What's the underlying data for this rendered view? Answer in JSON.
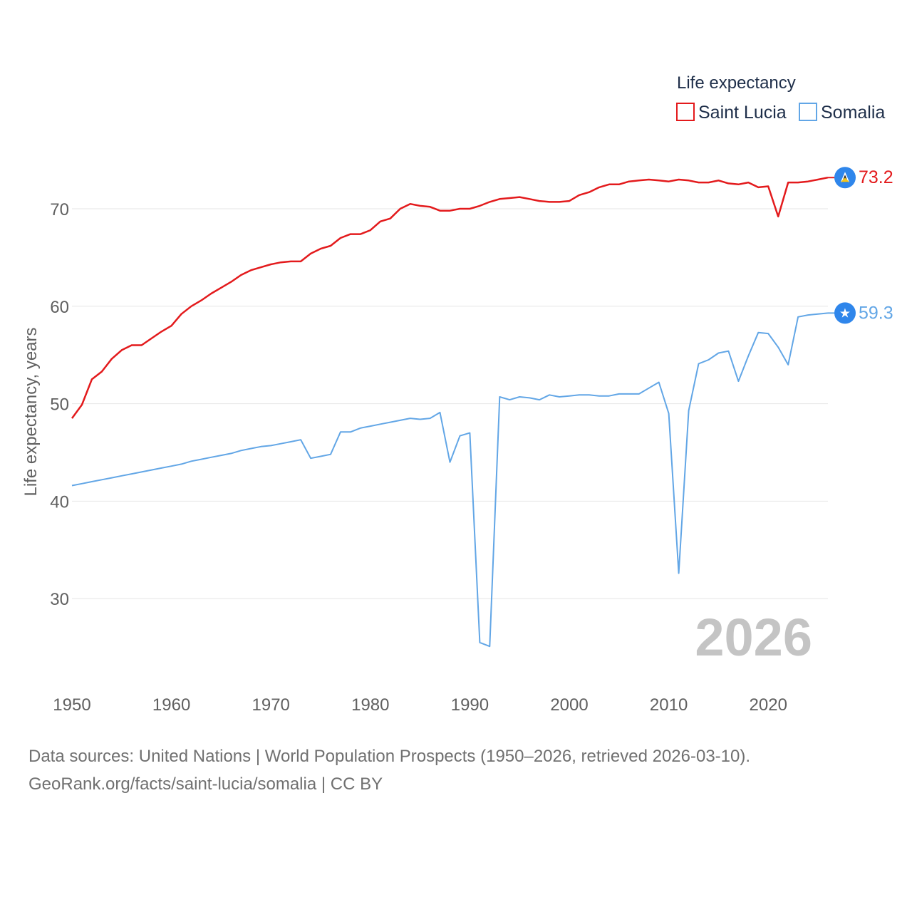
{
  "chart_data": {
    "type": "line",
    "legend": {
      "title": "Life expectancy",
      "position": "top-right"
    },
    "ylabel": "Life expectancy, years",
    "ylim": [
      22,
      75
    ],
    "yticks": [
      30,
      40,
      50,
      60,
      70
    ],
    "xlim": [
      1950,
      2026
    ],
    "xticks": [
      1950,
      1960,
      1970,
      1980,
      1990,
      2000,
      2010,
      2020
    ],
    "year_watermark": "2026",
    "series": [
      {
        "name": "Saint Lucia",
        "color": "#e31a1c",
        "end_label": "73.2",
        "marker_icon": "saint-lucia-flag-icon",
        "x": [
          1950,
          1951,
          1952,
          1953,
          1954,
          1955,
          1956,
          1957,
          1958,
          1959,
          1960,
          1961,
          1962,
          1963,
          1964,
          1965,
          1966,
          1967,
          1968,
          1969,
          1970,
          1971,
          1972,
          1973,
          1974,
          1975,
          1976,
          1977,
          1978,
          1979,
          1980,
          1981,
          1982,
          1983,
          1984,
          1985,
          1986,
          1987,
          1988,
          1989,
          1990,
          1991,
          1992,
          1993,
          1994,
          1995,
          1996,
          1997,
          1998,
          1999,
          2000,
          2001,
          2002,
          2003,
          2004,
          2005,
          2006,
          2007,
          2008,
          2009,
          2010,
          2011,
          2012,
          2013,
          2014,
          2015,
          2016,
          2017,
          2018,
          2019,
          2020,
          2021,
          2022,
          2023,
          2024,
          2025,
          2026
        ],
        "values": [
          48.5,
          49.9,
          52.5,
          53.3,
          54.6,
          55.5,
          56.0,
          56.0,
          56.7,
          57.4,
          58.0,
          59.2,
          60.0,
          60.6,
          61.3,
          61.9,
          62.5,
          63.2,
          63.7,
          64.0,
          64.3,
          64.5,
          64.6,
          64.6,
          65.4,
          65.9,
          66.2,
          67.0,
          67.4,
          67.4,
          67.8,
          68.7,
          69.0,
          70.0,
          70.5,
          70.3,
          70.2,
          69.8,
          69.8,
          70.0,
          70.0,
          70.3,
          70.7,
          71.0,
          71.1,
          71.2,
          71.0,
          70.8,
          70.7,
          70.7,
          70.8,
          71.4,
          71.7,
          72.2,
          72.5,
          72.5,
          72.8,
          72.9,
          73.0,
          72.9,
          72.8,
          73.0,
          72.9,
          72.7,
          72.7,
          72.9,
          72.6,
          72.5,
          72.7,
          72.2,
          72.3,
          69.2,
          72.7,
          72.7,
          72.8,
          73.0,
          73.2
        ]
      },
      {
        "name": "Somalia",
        "color": "#62a6e6",
        "end_label": "59.3",
        "marker_icon": "somalia-flag-icon",
        "x": [
          1950,
          1951,
          1952,
          1953,
          1954,
          1955,
          1956,
          1957,
          1958,
          1959,
          1960,
          1961,
          1962,
          1963,
          1964,
          1965,
          1966,
          1967,
          1968,
          1969,
          1970,
          1971,
          1972,
          1973,
          1974,
          1975,
          1976,
          1977,
          1978,
          1979,
          1980,
          1981,
          1982,
          1983,
          1984,
          1985,
          1986,
          1987,
          1988,
          1989,
          1990,
          1991,
          1992,
          1993,
          1994,
          1995,
          1996,
          1997,
          1998,
          1999,
          2000,
          2001,
          2002,
          2003,
          2004,
          2005,
          2006,
          2007,
          2008,
          2009,
          2010,
          2011,
          2012,
          2013,
          2014,
          2015,
          2016,
          2017,
          2018,
          2019,
          2020,
          2021,
          2022,
          2023,
          2024,
          2025,
          2026
        ],
        "values": [
          41.6,
          41.8,
          42.0,
          42.2,
          42.4,
          42.6,
          42.8,
          43.0,
          43.2,
          43.4,
          43.6,
          43.8,
          44.1,
          44.3,
          44.5,
          44.7,
          44.9,
          45.2,
          45.4,
          45.6,
          45.7,
          45.9,
          46.1,
          46.3,
          44.4,
          44.6,
          44.8,
          47.1,
          47.1,
          47.5,
          47.7,
          47.9,
          48.1,
          48.3,
          48.5,
          48.4,
          48.5,
          49.1,
          44.0,
          46.7,
          47.0,
          25.5,
          25.1,
          50.7,
          50.4,
          50.7,
          50.6,
          50.4,
          50.9,
          50.7,
          50.8,
          50.9,
          50.9,
          50.8,
          50.8,
          51.0,
          51.0,
          51.0,
          51.6,
          52.2,
          49.0,
          32.6,
          49.3,
          54.1,
          54.5,
          55.2,
          55.4,
          52.3,
          54.9,
          57.3,
          57.2,
          55.8,
          54.0,
          58.9,
          59.1,
          59.2,
          59.3
        ]
      }
    ]
  },
  "footer": {
    "source_line": "Data sources: United Nations | World Population Prospects (1950–2026, retrieved 2026-03-10).",
    "url_line": "GeoRank.org/facts/saint-lucia/somalia | CC BY"
  }
}
